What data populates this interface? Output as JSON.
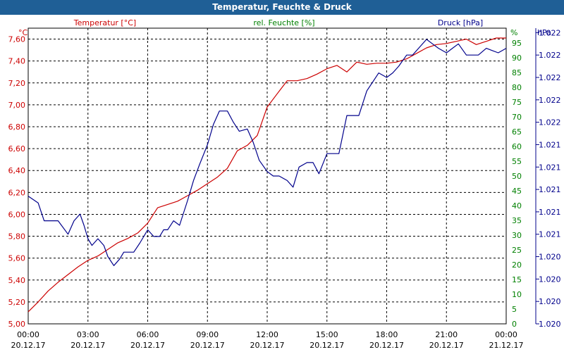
{
  "window": {
    "title": "Temperatur, Feuchte & Druck"
  },
  "colors": {
    "temperature": "#cc0000",
    "humidity": "#008000",
    "pressure": "#00008b",
    "title_bg": "#1f5f96",
    "grid": "#000000"
  },
  "chart_data": {
    "type": "line",
    "grid": true,
    "headers": {
      "temperature": "Temperatur [°C]",
      "humidity": "rel. Feuchte [%]",
      "pressure": "Druck [hPa]"
    },
    "axes": {
      "left": {
        "unit": "°C",
        "range": [
          5.0,
          7.7
        ],
        "ticks": [
          "5,00",
          "5,20",
          "5,40",
          "5,60",
          "5,80",
          "6,00",
          "6,20",
          "6,40",
          "6,60",
          "6,80",
          "7,00",
          "7,20",
          "7,40",
          "7,60"
        ]
      },
      "right_humidity": {
        "unit": "%",
        "range": [
          0,
          100
        ],
        "ticks": [
          "0",
          "5",
          "10",
          "15",
          "20",
          "25",
          "30",
          "35",
          "40",
          "45",
          "50",
          "55",
          "60",
          "65",
          "70",
          "75",
          "80",
          "85",
          "90",
          "95"
        ]
      },
      "right_pressure": {
        "unit": "hPa",
        "range": [
          0,
          13.2
        ],
        "ticks": [
          "1.020",
          "1.020",
          "1.020",
          "1.020",
          "1.021",
          "1.021",
          "1.021",
          "1.021",
          "1.021",
          "1.022",
          "1.022",
          "1.022",
          "1.022",
          "1.022"
        ]
      },
      "x": {
        "range": [
          0,
          24
        ],
        "ticks": [
          {
            "time": "00:00",
            "date": "20.12.17"
          },
          {
            "time": "03:00",
            "date": "20.12.17"
          },
          {
            "time": "06:00",
            "date": "20.12.17"
          },
          {
            "time": "09:00",
            "date": "20.12.17"
          },
          {
            "time": "12:00",
            "date": "20.12.17"
          },
          {
            "time": "15:00",
            "date": "20.12.17"
          },
          {
            "time": "18:00",
            "date": "20.12.17"
          },
          {
            "time": "21:00",
            "date": "20.12.17"
          },
          {
            "time": "00:00",
            "date": "21.12.17"
          }
        ]
      }
    },
    "series": [
      {
        "name": "Temperatur [°C]",
        "axis": "left",
        "x": [
          0,
          0.5,
          1,
          1.5,
          2,
          2.5,
          3,
          3.5,
          4,
          4.5,
          5,
          5.5,
          6,
          6.5,
          7,
          7.5,
          8,
          8.5,
          9,
          9.5,
          10,
          10.5,
          11,
          11.5,
          12,
          12.5,
          13,
          13.5,
          14,
          14.5,
          15,
          15.5,
          16,
          16.5,
          17,
          17.5,
          18,
          18.5,
          19,
          19.5,
          20,
          20.5,
          21,
          21.5,
          22,
          22.5,
          23,
          23.5,
          24
        ],
        "values": [
          5.11,
          5.2,
          5.3,
          5.38,
          5.45,
          5.52,
          5.58,
          5.62,
          5.68,
          5.74,
          5.78,
          5.83,
          5.92,
          6.06,
          6.09,
          6.12,
          6.17,
          6.22,
          6.28,
          6.34,
          6.42,
          6.58,
          6.63,
          6.72,
          6.98,
          7.1,
          7.22,
          7.22,
          7.24,
          7.28,
          7.33,
          7.36,
          7.3,
          7.39,
          7.37,
          7.38,
          7.38,
          7.39,
          7.42,
          7.47,
          7.52,
          7.55,
          7.56,
          7.58,
          7.6,
          7.55,
          7.58,
          7.61,
          7.61
        ]
      },
      {
        "name": "Druck [hPa]",
        "axis": "right_pressure",
        "x": [
          0,
          0.5,
          0.8,
          1,
          1.5,
          2,
          2.3,
          2.6,
          2.8,
          3,
          3.2,
          3.5,
          3.8,
          4,
          4.3,
          4.6,
          4.8,
          5,
          5.3,
          5.6,
          6,
          6.3,
          6.6,
          6.8,
          7,
          7.3,
          7.6,
          8,
          8.3,
          8.6,
          9,
          9.3,
          9.6,
          10,
          10.3,
          10.6,
          11,
          11.3,
          11.6,
          12,
          12.3,
          12.6,
          13,
          13.3,
          13.6,
          14,
          14.3,
          14.6,
          15,
          15.3,
          15.6,
          16,
          16.3,
          16.6,
          17,
          17.3,
          17.6,
          18,
          18.3,
          18.6,
          19,
          19.3,
          19.6,
          20,
          20.3,
          20.6,
          21,
          21.3,
          21.6,
          22,
          22.3,
          22.6,
          23,
          23.3,
          23.6,
          24
        ],
        "values": [
          5.7,
          5.4,
          4.6,
          4.6,
          4.6,
          4.0,
          4.6,
          4.9,
          4.4,
          3.8,
          3.5,
          3.8,
          3.5,
          3.0,
          2.6,
          2.9,
          3.2,
          3.2,
          3.2,
          3.6,
          4.2,
          3.9,
          3.9,
          4.2,
          4.2,
          4.6,
          4.4,
          5.5,
          6.4,
          7.1,
          8.0,
          8.9,
          9.5,
          9.5,
          9.0,
          8.6,
          8.7,
          8.1,
          7.3,
          6.8,
          6.6,
          6.6,
          6.4,
          6.1,
          7.0,
          7.2,
          7.2,
          6.7,
          7.6,
          7.6,
          7.6,
          9.3,
          9.3,
          9.3,
          10.4,
          10.8,
          11.2,
          11.0,
          11.2,
          11.5,
          12.0,
          12.0,
          12.3,
          12.7,
          12.5,
          12.3,
          12.1,
          12.3,
          12.5,
          12.0,
          12.0,
          12.0,
          12.3,
          12.2,
          12.1,
          12.3
        ]
      }
    ]
  }
}
